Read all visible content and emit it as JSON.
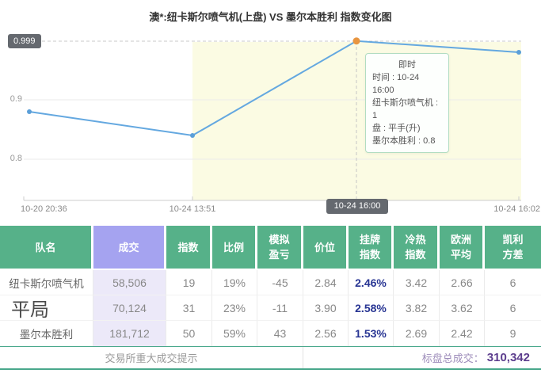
{
  "title": "澳*:纽卡斯尔喷气机(上盘) VS 墨尔本胜利 指数变化图",
  "chart_data": {
    "type": "line",
    "x": [
      "10-20 20:36",
      "10-24 13:51",
      "10-24 16:00",
      "10-24 16:02"
    ],
    "series": [
      {
        "name": "纽卡斯尔喷气机指数",
        "values": [
          0.88,
          0.84,
          0.999,
          0.98
        ]
      }
    ],
    "yticks": [
      "0.9",
      "0.8"
    ],
    "ylim": [
      0.75,
      1.02
    ],
    "current_value_badge": "0.999",
    "selected_point": {
      "x": "10-24 16:00",
      "value": 0.999
    },
    "highlight_region_start_x": "10-24 13:51",
    "grid": true,
    "colors": {
      "line": "#64a8e0",
      "point": "#5b9fd8",
      "selected_point": "#e89540",
      "highlight_region": "#fbfbe3",
      "badge": "#65696f"
    }
  },
  "tooltip": {
    "title": "即时",
    "lines": [
      "时间 : 10-24 16:00",
      "纽卡斯尔喷气机 : 1",
      "盘 : 平手(升)",
      "墨尔本胜利 : 0.8"
    ]
  },
  "table": {
    "headers": [
      "队名",
      "成交",
      "指数",
      "比例",
      "模拟\n盈亏",
      "价位",
      "挂牌\n指数",
      "冷热\n指数",
      "欧洲\n平均",
      "凯利\n方差"
    ],
    "rows": [
      [
        "纽卡斯尔喷气机",
        "58,506",
        "19",
        "19%",
        "-45",
        "2.84",
        "2.46%",
        "3.42",
        "2.66",
        "6"
      ],
      [
        "平局",
        "70,124",
        "31",
        "23%",
        "-11",
        "3.90",
        "2.58%",
        "3.82",
        "3.62",
        "6"
      ],
      [
        "墨尔本胜利",
        "181,712",
        "50",
        "59%",
        "43",
        "2.56",
        "1.53%",
        "2.69",
        "2.42",
        "9"
      ]
    ],
    "footer": {
      "notice": "交易所重大成交提示",
      "total_label": "标盘总成交：",
      "total_value": "310,342"
    }
  }
}
